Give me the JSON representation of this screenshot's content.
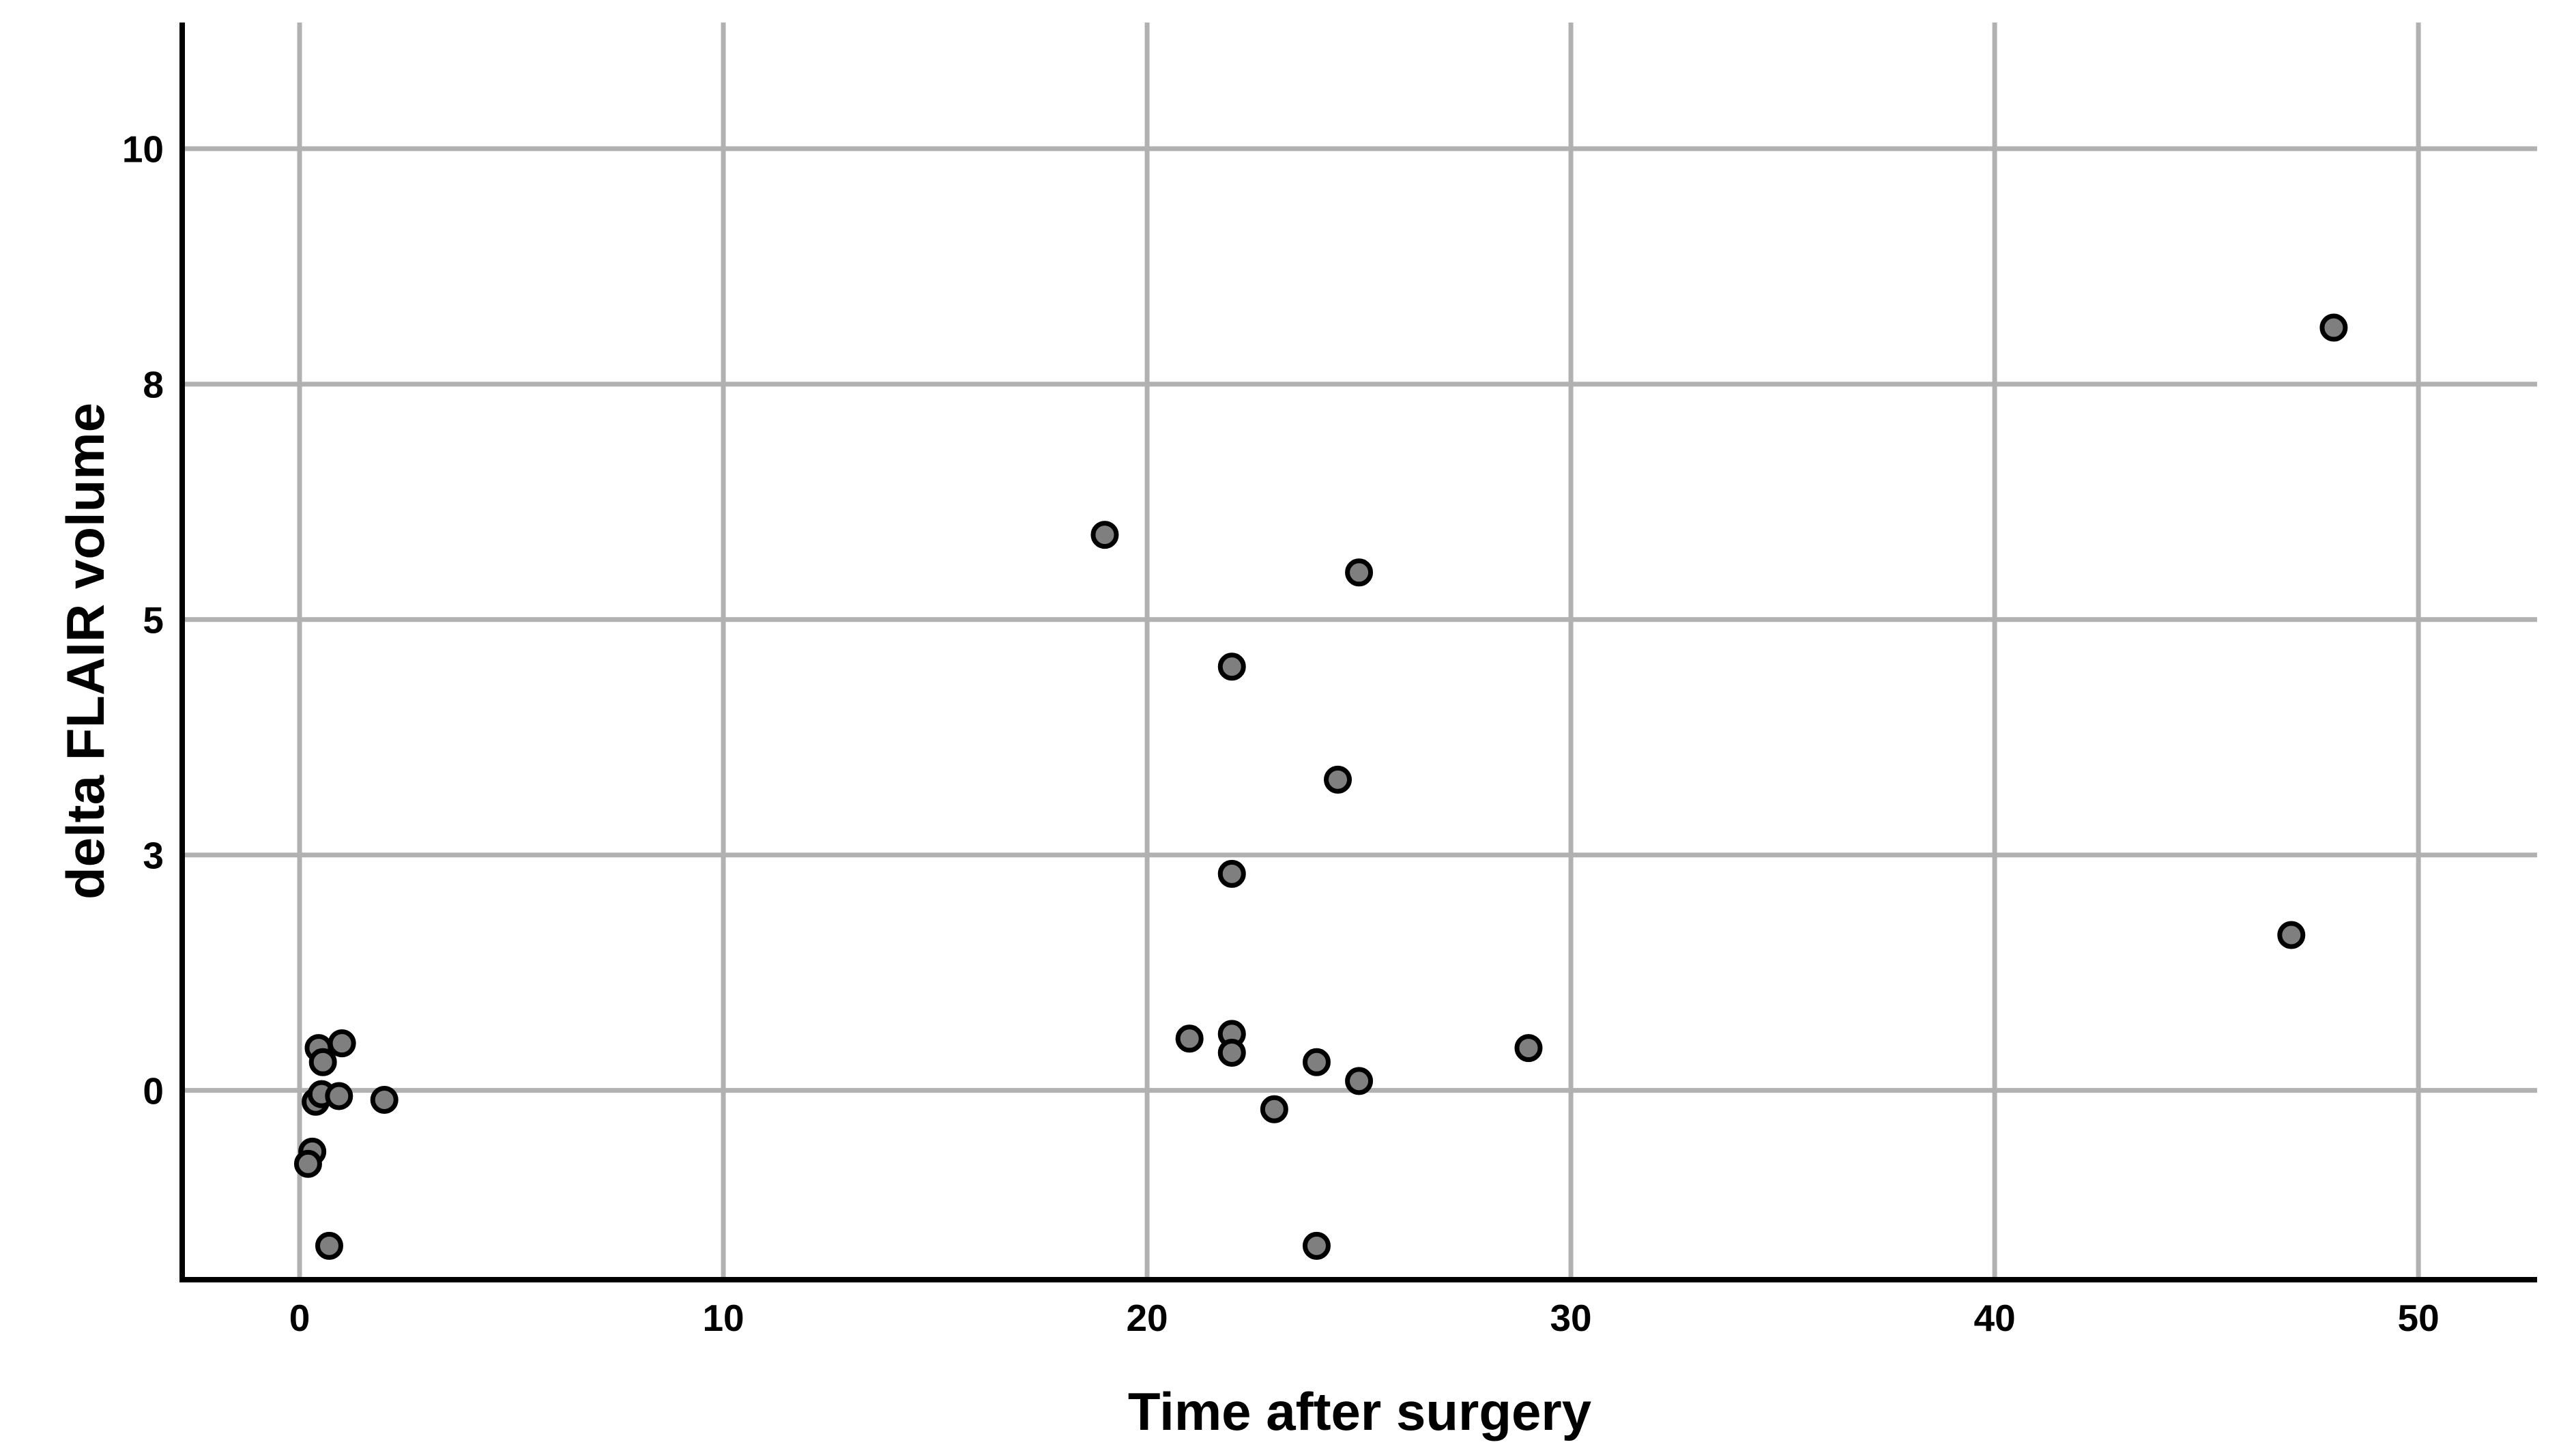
{
  "chart_data": {
    "type": "scatter",
    "title": "",
    "xlabel": "Time after surgery",
    "ylabel": "delta FLAIR volume",
    "x_ticks": {
      "values": [
        0,
        10,
        20,
        30,
        40,
        50
      ],
      "labels": [
        "0",
        "10",
        "20",
        "30",
        "40",
        "50"
      ]
    },
    "y_ticks": {
      "values": [
        10,
        7.5,
        5,
        2.5,
        0
      ],
      "labels": [
        "10",
        "8",
        "5",
        "3",
        "0"
      ]
    },
    "xlim": [
      -2.77,
      52.8
    ],
    "ylim": [
      -2.01,
      11.34
    ],
    "grid": true,
    "legend": "none",
    "points": [
      [
        0.45,
        0.45
      ],
      [
        0.55,
        0.3
      ],
      [
        1,
        0.5
      ],
      [
        0.38,
        -0.12
      ],
      [
        0.52,
        -0.04
      ],
      [
        0.93,
        -0.06
      ],
      [
        2,
        -0.1
      ],
      [
        0.3,
        -0.65
      ],
      [
        0.2,
        -0.78
      ],
      [
        0.7,
        -1.65
      ],
      [
        19,
        5.9
      ],
      [
        25,
        5.5
      ],
      [
        22,
        4.5
      ],
      [
        24.5,
        3.3
      ],
      [
        22,
        2.3
      ],
      [
        21,
        0.55
      ],
      [
        22,
        0.6
      ],
      [
        22,
        0.4
      ],
      [
        24,
        0.3
      ],
      [
        25,
        0.1
      ],
      [
        23,
        -0.2
      ],
      [
        24,
        -1.65
      ],
      [
        29,
        0.45
      ],
      [
        47,
        1.65
      ],
      [
        48,
        8.1
      ]
    ],
    "colors": {
      "point_fill": "#7f7f7f",
      "point_stroke": "#000000",
      "grid": "#b1b1b1",
      "axis": "#000000",
      "background": "#ffffff"
    }
  }
}
